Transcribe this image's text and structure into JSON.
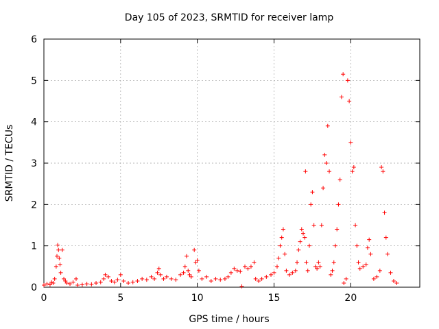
{
  "chart_data": {
    "type": "scatter",
    "title": "Day 105 of 2023, SRMTID for receiver lamp",
    "xlabel": "GPS time / hours",
    "ylabel": "SRMTID / TECUs",
    "xlim": [
      0,
      24.5
    ],
    "ylim": [
      0,
      6
    ],
    "xticks": [
      0,
      5,
      10,
      15,
      20
    ],
    "yticks": [
      0,
      1,
      2,
      3,
      4,
      5,
      6
    ],
    "grid": true,
    "marker": "+",
    "color": "#ff0000",
    "series": [
      {
        "name": "SRMTID",
        "points": [
          [
            0.0,
            0.05
          ],
          [
            0.2,
            0.08
          ],
          [
            0.4,
            0.06
          ],
          [
            0.5,
            0.12
          ],
          [
            0.6,
            0.1
          ],
          [
            0.7,
            0.2
          ],
          [
            0.8,
            0.5
          ],
          [
            0.85,
            0.75
          ],
          [
            0.9,
            1.02
          ],
          [
            0.95,
            0.9
          ],
          [
            1.0,
            0.7
          ],
          [
            1.05,
            0.55
          ],
          [
            1.1,
            0.35
          ],
          [
            1.2,
            0.9
          ],
          [
            1.3,
            0.2
          ],
          [
            1.4,
            0.15
          ],
          [
            1.5,
            0.1
          ],
          [
            1.7,
            0.08
          ],
          [
            1.9,
            0.12
          ],
          [
            2.1,
            0.2
          ],
          [
            2.2,
            0.05
          ],
          [
            2.5,
            0.06
          ],
          [
            2.8,
            0.08
          ],
          [
            3.1,
            0.07
          ],
          [
            3.4,
            0.1
          ],
          [
            3.7,
            0.12
          ],
          [
            3.9,
            0.2
          ],
          [
            4.0,
            0.3
          ],
          [
            4.2,
            0.25
          ],
          [
            4.4,
            0.15
          ],
          [
            4.6,
            0.12
          ],
          [
            4.8,
            0.18
          ],
          [
            5.0,
            0.3
          ],
          [
            5.2,
            0.15
          ],
          [
            5.5,
            0.1
          ],
          [
            5.8,
            0.12
          ],
          [
            6.1,
            0.15
          ],
          [
            6.4,
            0.2
          ],
          [
            6.7,
            0.18
          ],
          [
            7.0,
            0.25
          ],
          [
            7.2,
            0.2
          ],
          [
            7.4,
            0.35
          ],
          [
            7.5,
            0.45
          ],
          [
            7.6,
            0.3
          ],
          [
            7.8,
            0.2
          ],
          [
            8.0,
            0.25
          ],
          [
            8.3,
            0.2
          ],
          [
            8.6,
            0.18
          ],
          [
            8.9,
            0.3
          ],
          [
            9.1,
            0.35
          ],
          [
            9.2,
            0.5
          ],
          [
            9.3,
            0.75
          ],
          [
            9.4,
            0.4
          ],
          [
            9.5,
            0.3
          ],
          [
            9.6,
            0.25
          ],
          [
            9.8,
            0.9
          ],
          [
            9.9,
            0.6
          ],
          [
            10.0,
            0.65
          ],
          [
            10.1,
            0.4
          ],
          [
            10.3,
            0.2
          ],
          [
            10.6,
            0.25
          ],
          [
            10.9,
            0.15
          ],
          [
            11.2,
            0.2
          ],
          [
            11.5,
            0.18
          ],
          [
            11.8,
            0.2
          ],
          [
            12.0,
            0.25
          ],
          [
            12.2,
            0.35
          ],
          [
            12.4,
            0.45
          ],
          [
            12.6,
            0.4
          ],
          [
            12.8,
            0.38
          ],
          [
            12.9,
            0.02
          ],
          [
            13.1,
            0.5
          ],
          [
            13.3,
            0.45
          ],
          [
            13.5,
            0.5
          ],
          [
            13.7,
            0.6
          ],
          [
            13.8,
            0.2
          ],
          [
            14.0,
            0.15
          ],
          [
            14.2,
            0.2
          ],
          [
            14.5,
            0.25
          ],
          [
            14.8,
            0.3
          ],
          [
            15.0,
            0.35
          ],
          [
            15.2,
            0.5
          ],
          [
            15.3,
            0.7
          ],
          [
            15.4,
            1.0
          ],
          [
            15.5,
            1.2
          ],
          [
            15.6,
            1.4
          ],
          [
            15.7,
            0.8
          ],
          [
            15.8,
            0.4
          ],
          [
            16.0,
            0.3
          ],
          [
            16.2,
            0.35
          ],
          [
            16.4,
            0.4
          ],
          [
            16.5,
            0.6
          ],
          [
            16.6,
            0.9
          ],
          [
            16.7,
            1.1
          ],
          [
            16.8,
            1.4
          ],
          [
            16.9,
            1.3
          ],
          [
            17.0,
            1.2
          ],
          [
            17.05,
            2.8
          ],
          [
            17.1,
            0.6
          ],
          [
            17.2,
            0.4
          ],
          [
            17.3,
            1.0
          ],
          [
            17.4,
            2.0
          ],
          [
            17.5,
            2.3
          ],
          [
            17.6,
            1.5
          ],
          [
            17.7,
            0.5
          ],
          [
            17.8,
            0.45
          ],
          [
            17.9,
            0.6
          ],
          [
            18.0,
            0.5
          ],
          [
            18.1,
            1.5
          ],
          [
            18.2,
            2.4
          ],
          [
            18.3,
            3.2
          ],
          [
            18.4,
            3.0
          ],
          [
            18.5,
            3.9
          ],
          [
            18.6,
            2.8
          ],
          [
            18.7,
            0.3
          ],
          [
            18.8,
            0.4
          ],
          [
            18.9,
            0.6
          ],
          [
            19.0,
            1.0
          ],
          [
            19.1,
            1.4
          ],
          [
            19.2,
            2.0
          ],
          [
            19.3,
            2.6
          ],
          [
            19.4,
            4.6
          ],
          [
            19.5,
            5.15
          ],
          [
            19.55,
            0.1
          ],
          [
            19.7,
            0.2
          ],
          [
            19.8,
            5.0
          ],
          [
            19.9,
            4.5
          ],
          [
            20.0,
            3.5
          ],
          [
            20.1,
            2.8
          ],
          [
            20.2,
            2.9
          ],
          [
            20.3,
            1.5
          ],
          [
            20.4,
            1.0
          ],
          [
            20.5,
            0.6
          ],
          [
            20.6,
            0.45
          ],
          [
            20.8,
            0.5
          ],
          [
            21.0,
            0.55
          ],
          [
            21.1,
            0.95
          ],
          [
            21.2,
            1.15
          ],
          [
            21.3,
            0.8
          ],
          [
            21.5,
            0.2
          ],
          [
            21.7,
            0.25
          ],
          [
            21.9,
            0.4
          ],
          [
            22.0,
            2.9
          ],
          [
            22.1,
            2.8
          ],
          [
            22.2,
            1.8
          ],
          [
            22.3,
            1.2
          ],
          [
            22.4,
            0.8
          ],
          [
            22.6,
            0.35
          ],
          [
            22.8,
            0.15
          ],
          [
            23.0,
            0.1
          ]
        ]
      }
    ]
  }
}
